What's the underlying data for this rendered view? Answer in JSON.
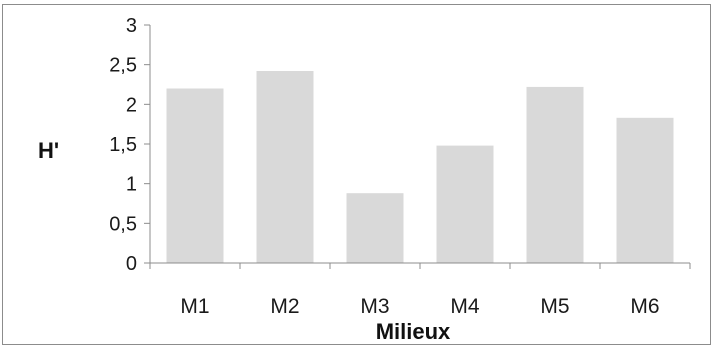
{
  "chart_data": {
    "type": "bar",
    "categories": [
      "M1",
      "M2",
      "M3",
      "M4",
      "M5",
      "M6"
    ],
    "values": [
      2.2,
      2.42,
      0.88,
      1.48,
      2.22,
      1.83
    ],
    "xlabel": "Milieux",
    "ylabel": "H'",
    "ylim": [
      0,
      3
    ],
    "yticks": [
      0,
      0.5,
      1,
      1.5,
      2,
      2.5,
      3
    ],
    "ytick_labels": [
      "0",
      "0,5",
      "1",
      "1,5",
      "2",
      "2,5",
      "3"
    ],
    "grid": false,
    "legend": "none",
    "colors": {
      "bar": "#d9d9d9",
      "axis": "#8c8c8c"
    }
  }
}
